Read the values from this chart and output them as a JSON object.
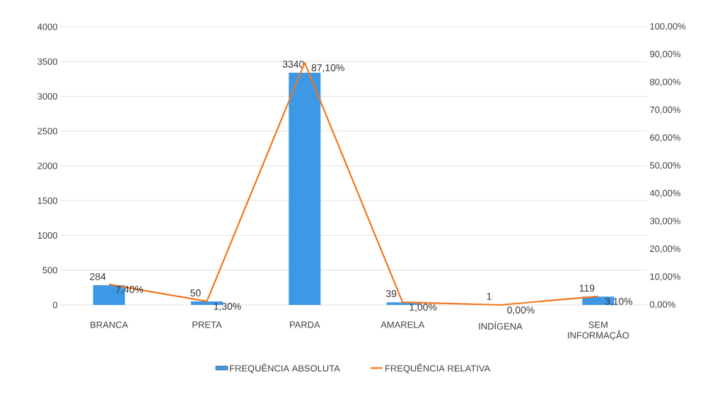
{
  "chart_data": {
    "type": "bar",
    "categories": [
      "BRANCA",
      "PRETA",
      "PARDA",
      "AMARELA",
      "INDÍGENA",
      "SEM INFORMAÇÃO"
    ],
    "series": [
      {
        "name": "FREQUÊNCIA ABSOLUTA",
        "color": "#3d98e6",
        "values": [
          284,
          50,
          3340,
          39,
          1,
          119
        ],
        "value_labels": [
          "284",
          "50",
          "3340",
          "39",
          "1",
          "119"
        ]
      },
      {
        "name": "FREQUÊNCIA RELATIVA",
        "type": "line",
        "axis": "y2",
        "color": "#f0761f",
        "values": [
          7.4,
          1.3,
          87.1,
          1.0,
          0.0,
          3.1
        ],
        "value_labels": [
          "7,40%",
          "1,30%",
          "87,10%",
          "1,00%",
          "0,00%",
          "3,10%"
        ]
      }
    ],
    "ylim": [
      0,
      4000
    ],
    "yticks": [
      0,
      500,
      1000,
      1500,
      2000,
      2500,
      3000,
      3500,
      4000
    ],
    "y2lim": [
      0,
      100
    ],
    "y2ticks": [
      {
        "value": 0,
        "label": "0,00%"
      },
      {
        "value": 10,
        "label": "10,00%"
      },
      {
        "value": 20,
        "label": "20,00%"
      },
      {
        "value": 30,
        "label": "30,00%"
      },
      {
        "value": 40,
        "label": "40,00%"
      },
      {
        "value": 50,
        "label": "50,00%"
      },
      {
        "value": 60,
        "label": "60,00%"
      },
      {
        "value": 70,
        "label": "70,00%"
      },
      {
        "value": 80,
        "label": "80,00%"
      },
      {
        "value": 90,
        "label": "90,00%"
      },
      {
        "value": 100,
        "label": "100,00%"
      }
    ],
    "grid": "y",
    "legend": "bottom",
    "marker": "none",
    "line_style": "solid"
  }
}
